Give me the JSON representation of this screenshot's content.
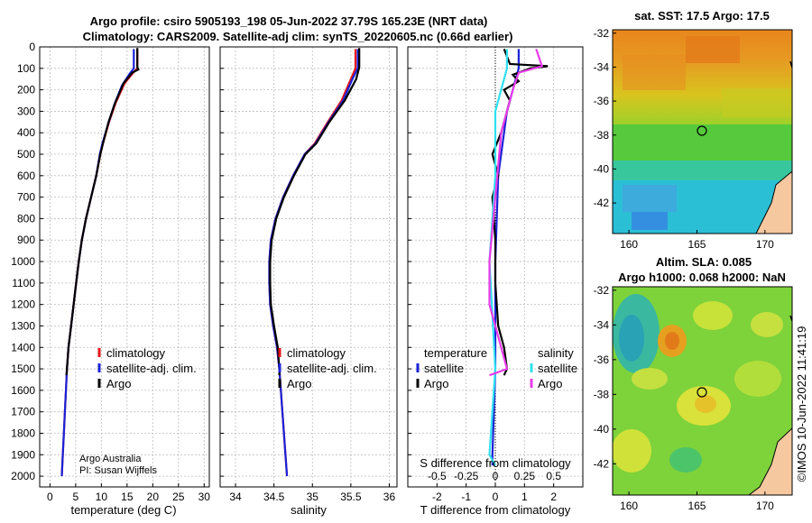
{
  "header": {
    "line1": "Argo profile: csiro 5905193_198 05-Jun-2022 37.79S 165.23E (NRT data)",
    "line2": "Climatology: CARS2009. Satellite-adj clim: synTS_20220605.nc (0.66d earlier)"
  },
  "colors": {
    "climatology": "#e8141a",
    "satellite": "#1a22d8",
    "argo": "#000000",
    "sat_s": "#2ee0f0",
    "argo_s": "#e83ce8"
  },
  "chart_data": [
    {
      "type": "line",
      "id": "temperature",
      "xlabel": "temperature (deg C)",
      "xlim": [
        -2,
        31
      ],
      "xticks": [
        "0",
        "5",
        "10",
        "15",
        "20",
        "25",
        "30"
      ],
      "ylim": [
        0,
        2050
      ],
      "yticks": [
        "0",
        "100",
        "200",
        "300",
        "400",
        "500",
        "600",
        "700",
        "800",
        "900",
        "1000",
        "1100",
        "1200",
        "1300",
        "1400",
        "1500",
        "1600",
        "1700",
        "1800",
        "1900",
        "2000"
      ],
      "legend": [
        "climatology",
        "satellite-adj. clim.",
        "Argo"
      ],
      "annotation": [
        "Argo Australia",
        "PI: Susan Wijffels"
      ],
      "series": [
        {
          "name": "climatology",
          "points": [
            [
              17.0,
              10
            ],
            [
              17.0,
              100
            ],
            [
              16.2,
              120
            ],
            [
              14.5,
              170
            ],
            [
              12.8,
              260
            ],
            [
              11.5,
              350
            ],
            [
              10.3,
              450
            ],
            [
              9.8,
              500
            ],
            [
              9.0,
              600
            ],
            [
              8.0,
              700
            ],
            [
              7.0,
              800
            ],
            [
              6.2,
              900
            ],
            [
              5.6,
              1000
            ],
            [
              5.1,
              1100
            ],
            [
              4.6,
              1200
            ],
            [
              4.1,
              1300
            ],
            [
              3.6,
              1400
            ],
            [
              3.3,
              1500
            ],
            [
              3.1,
              1600
            ],
            [
              2.9,
              1700
            ],
            [
              2.7,
              1800
            ],
            [
              2.5,
              1900
            ],
            [
              2.3,
              2000
            ]
          ]
        },
        {
          "name": "satellite-adj. clim.",
          "points": [
            [
              16.3,
              10
            ],
            [
              16.3,
              100
            ],
            [
              15.5,
              125
            ],
            [
              14.0,
              180
            ],
            [
              12.5,
              270
            ],
            [
              11.3,
              360
            ],
            [
              10.2,
              450
            ],
            [
              9.7,
              500
            ],
            [
              9.0,
              600
            ],
            [
              8.0,
              700
            ],
            [
              7.0,
              800
            ],
            [
              6.2,
              900
            ],
            [
              5.6,
              1000
            ],
            [
              5.1,
              1100
            ],
            [
              4.6,
              1200
            ],
            [
              4.1,
              1300
            ],
            [
              3.6,
              1400
            ],
            [
              3.3,
              1500
            ],
            [
              3.1,
              1600
            ],
            [
              2.9,
              1700
            ],
            [
              2.7,
              1800
            ],
            [
              2.5,
              1900
            ],
            [
              2.3,
              2000
            ]
          ]
        },
        {
          "name": "Argo",
          "points": [
            [
              17.0,
              5
            ],
            [
              17.0,
              95
            ],
            [
              17.2,
              105
            ],
            [
              16.0,
              120
            ],
            [
              14.3,
              170
            ],
            [
              12.7,
              260
            ],
            [
              11.4,
              350
            ],
            [
              10.3,
              450
            ],
            [
              9.8,
              500
            ],
            [
              9.0,
              600
            ],
            [
              8.0,
              700
            ],
            [
              7.0,
              800
            ],
            [
              6.2,
              900
            ],
            [
              5.6,
              1000
            ],
            [
              5.1,
              1100
            ],
            [
              4.6,
              1200
            ],
            [
              4.1,
              1300
            ],
            [
              3.6,
              1400
            ],
            [
              3.3,
              1500
            ],
            [
              3.2,
              1530
            ]
          ]
        }
      ]
    },
    {
      "type": "line",
      "id": "salinity",
      "xlabel": "salinity",
      "xlim": [
        33.8,
        36.1
      ],
      "xticks": [
        "34",
        "34.5",
        "35",
        "35.5",
        "36"
      ],
      "ylim": [
        0,
        2050
      ],
      "legend": [
        "climatology",
        "satellite-adj. clim.",
        "Argo"
      ],
      "series": [
        {
          "name": "climatology",
          "points": [
            [
              35.56,
              10
            ],
            [
              35.56,
              100
            ],
            [
              35.5,
              150
            ],
            [
              35.38,
              250
            ],
            [
              35.2,
              350
            ],
            [
              35.03,
              450
            ],
            [
              34.9,
              500
            ],
            [
              34.75,
              600
            ],
            [
              34.62,
              700
            ],
            [
              34.52,
              800
            ],
            [
              34.46,
              900
            ],
            [
              34.44,
              1000
            ],
            [
              34.44,
              1100
            ],
            [
              34.45,
              1200
            ],
            [
              34.49,
              1300
            ],
            [
              34.54,
              1400
            ],
            [
              34.57,
              1500
            ],
            [
              34.59,
              1600
            ],
            [
              34.61,
              1700
            ],
            [
              34.63,
              1800
            ],
            [
              34.65,
              1900
            ],
            [
              34.67,
              2000
            ]
          ]
        },
        {
          "name": "satellite-adj. clim.",
          "points": [
            [
              35.59,
              10
            ],
            [
              35.59,
              100
            ],
            [
              35.52,
              150
            ],
            [
              35.4,
              250
            ],
            [
              35.21,
              350
            ],
            [
              35.04,
              450
            ],
            [
              34.9,
              500
            ],
            [
              34.75,
              600
            ],
            [
              34.62,
              700
            ],
            [
              34.52,
              800
            ],
            [
              34.46,
              900
            ],
            [
              34.44,
              1000
            ],
            [
              34.44,
              1100
            ],
            [
              34.45,
              1200
            ],
            [
              34.49,
              1300
            ],
            [
              34.54,
              1400
            ],
            [
              34.57,
              1500
            ],
            [
              34.59,
              1600
            ],
            [
              34.61,
              1700
            ],
            [
              34.63,
              1800
            ],
            [
              34.65,
              1900
            ],
            [
              34.67,
              2000
            ]
          ]
        },
        {
          "name": "Argo",
          "points": [
            [
              35.61,
              5
            ],
            [
              35.61,
              95
            ],
            [
              35.57,
              150
            ],
            [
              35.42,
              250
            ],
            [
              35.22,
              350
            ],
            [
              35.05,
              450
            ],
            [
              34.91,
              500
            ],
            [
              34.76,
              600
            ],
            [
              34.63,
              700
            ],
            [
              34.53,
              800
            ],
            [
              34.47,
              900
            ],
            [
              34.45,
              1000
            ],
            [
              34.45,
              1100
            ],
            [
              34.46,
              1200
            ],
            [
              34.5,
              1300
            ],
            [
              34.55,
              1400
            ],
            [
              34.57,
              1500
            ],
            [
              34.57,
              1530
            ]
          ]
        }
      ]
    },
    {
      "type": "line",
      "id": "difference",
      "xlabel": "T difference from climatology",
      "xlabel_top": "S difference from climatology",
      "xlim": [
        -3,
        3
      ],
      "xticks": [
        "-2",
        "-1",
        "0",
        "1",
        "2"
      ],
      "sticks": [
        "-0.5",
        "-0.25",
        "0",
        "0.25",
        "0.5"
      ],
      "ylim": [
        0,
        2050
      ],
      "legend_titles": [
        "temperature",
        "salinity"
      ],
      "legend_t": [
        "satellite",
        "Argo"
      ],
      "legend_s": [
        "satellite",
        "Argo"
      ],
      "series": [
        {
          "name": "T satellite",
          "points": [
            [
              0.8,
              10
            ],
            [
              0.8,
              90
            ],
            [
              0.8,
              100
            ],
            [
              0.4,
              300
            ],
            [
              0.1,
              600
            ],
            [
              0.0,
              1000
            ],
            [
              0.0,
              1500
            ],
            [
              -0.1,
              1900
            ],
            [
              -0.1,
              1950
            ]
          ]
        },
        {
          "name": "T Argo",
          "points": [
            [
              0.3,
              10
            ],
            [
              0.5,
              80
            ],
            [
              1.8,
              90
            ],
            [
              1.2,
              100
            ],
            [
              0.6,
              130
            ],
            [
              0.8,
              160
            ],
            [
              0.3,
              200
            ],
            [
              0.5,
              250
            ],
            [
              0.2,
              400
            ],
            [
              -0.1,
              500
            ],
            [
              0.1,
              600
            ],
            [
              -0.1,
              700
            ],
            [
              0.0,
              900
            ],
            [
              0.0,
              1100
            ],
            [
              0.1,
              1300
            ],
            [
              0.3,
              1400
            ],
            [
              0.4,
              1500
            ],
            [
              0.3,
              1530
            ]
          ]
        },
        {
          "name": "S satellite",
          "points": [
            [
              0.1,
              10
            ],
            [
              0.1,
              100
            ],
            [
              0.0,
              300
            ],
            [
              0.0,
              600
            ],
            [
              -0.05,
              1000
            ],
            [
              0.0,
              1500
            ],
            [
              -0.05,
              1900
            ],
            [
              0.0,
              1950
            ]
          ]
        },
        {
          "name": "S Argo",
          "points": [
            [
              0.35,
              10
            ],
            [
              0.4,
              90
            ],
            [
              0.2,
              120
            ],
            [
              0.15,
              200
            ],
            [
              0.05,
              400
            ],
            [
              0.0,
              700
            ],
            [
              -0.05,
              1000
            ],
            [
              -0.05,
              1200
            ],
            [
              0.05,
              1400
            ],
            [
              0.1,
              1500
            ],
            [
              -0.05,
              1530
            ]
          ]
        }
      ]
    }
  ],
  "maps": {
    "sst": {
      "title": "sat. SST: 17.5 Argo: 17.5",
      "xticks": [
        "160",
        "165",
        "170"
      ],
      "yticks": [
        "-32",
        "-34",
        "-36",
        "-38",
        "-40",
        "-42"
      ]
    },
    "sla": {
      "title1": "Altim. SLA: 0.085",
      "title2": "Argo h1000: 0.068 h2000: NaN",
      "xticks": [
        "160",
        "165",
        "170"
      ],
      "yticks": [
        "-32",
        "-34",
        "-36",
        "-38",
        "-40",
        "-42"
      ]
    }
  },
  "credit": "©IMOS 10-Jun-2022 11:41:19"
}
